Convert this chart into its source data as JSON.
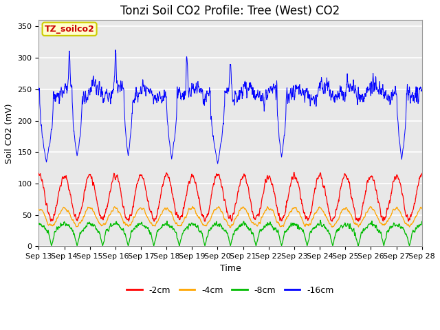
{
  "title": "Tonzi Soil CO2 Profile: Tree (West) CO2",
  "ylabel": "Soil CO2 (mV)",
  "xlabel": "Time",
  "annotation_label": "TZ_soilco2",
  "annotation_color": "#cc0000",
  "annotation_bg": "#ffffcc",
  "annotation_edge": "#cccc00",
  "ylim": [
    0,
    360
  ],
  "yticks": [
    0,
    50,
    100,
    150,
    200,
    250,
    300,
    350
  ],
  "line_colors": {
    "minus2cm": "#ff0000",
    "minus4cm": "#ffa500",
    "minus8cm": "#00bb00",
    "minus16cm": "#0000ff"
  },
  "legend_labels": [
    "-2cm",
    "-4cm",
    "-8cm",
    "-16cm"
  ],
  "legend_colors": [
    "#ff0000",
    "#ffa500",
    "#00bb00",
    "#0000ff"
  ],
  "bg_color": "#e8e8e8",
  "fig_bg": "#ffffff",
  "grid_color": "#ffffff",
  "title_fontsize": 12,
  "axis_label_fontsize": 9,
  "tick_fontsize": 8,
  "legend_fontsize": 9
}
